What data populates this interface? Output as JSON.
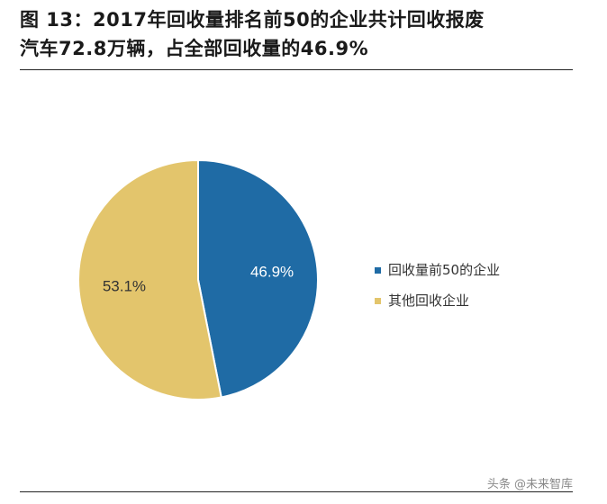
{
  "title": {
    "line1": "图 13：2017年回收量排名前50的企业共计回收报废",
    "line2": "汽车72.8万辆，占全部回收量的46.9%"
  },
  "chart_data": {
    "type": "pie",
    "title": "",
    "categories": [
      "回收量前50的企业",
      "其他回收企业"
    ],
    "values": [
      46.9,
      53.1
    ],
    "labels": [
      "46.9%",
      "53.1%"
    ],
    "colors": [
      "#1f6ba5",
      "#e3c56c"
    ],
    "legend_position": "right"
  },
  "watermark": "头条 @未来智库"
}
